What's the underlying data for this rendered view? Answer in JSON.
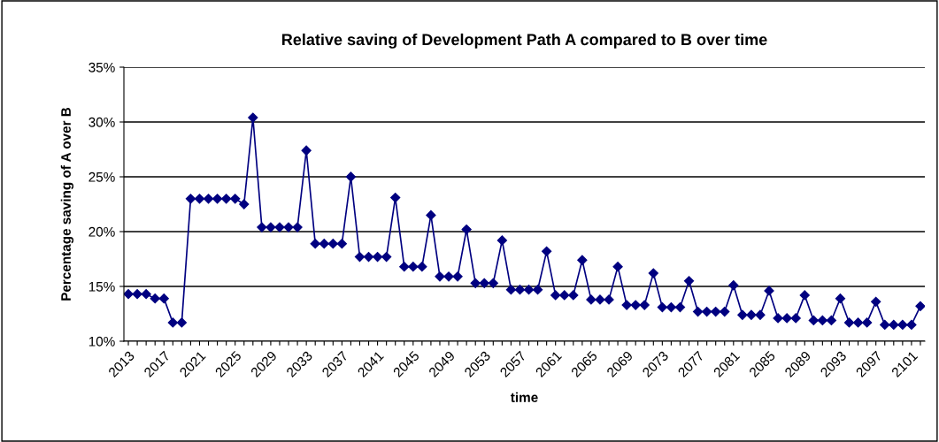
{
  "chart_data": {
    "type": "line",
    "title": "Relative saving of Development Path A compared to B over time",
    "xlabel": "time",
    "ylabel": "Percentage saving of A over B",
    "categories": [
      "2013",
      null,
      null,
      null,
      "2017",
      null,
      null,
      null,
      "2021",
      null,
      null,
      null,
      "2025",
      null,
      null,
      null,
      "2029",
      null,
      null,
      null,
      "2033",
      null,
      null,
      null,
      "2037",
      null,
      null,
      null,
      "2041",
      null,
      null,
      null,
      "2045",
      null,
      null,
      null,
      "2049",
      null,
      null,
      null,
      "2053",
      null,
      null,
      null,
      "2057",
      null,
      null,
      null,
      "2061",
      null,
      null,
      null,
      "2065",
      null,
      null,
      null,
      "2069",
      null,
      null,
      null,
      "2073",
      null,
      null,
      null,
      "2077",
      null,
      null,
      null,
      "2081",
      null,
      null,
      null,
      "2085",
      null,
      null,
      null,
      "2089",
      null,
      null,
      null,
      "2093",
      null,
      null,
      null,
      "2097",
      null,
      null,
      null,
      "2101",
      null
    ],
    "series": [
      {
        "color": "#000080",
        "values": [
          14.3,
          14.3,
          14.3,
          13.9,
          13.9,
          11.7,
          11.7,
          23.0,
          23.0,
          23.0,
          23.0,
          23.0,
          23.0,
          22.5,
          30.4,
          20.4,
          20.4,
          20.4,
          20.4,
          20.4,
          27.4,
          18.9,
          18.9,
          18.9,
          18.9,
          25.0,
          17.7,
          17.7,
          17.7,
          17.7,
          23.1,
          16.8,
          16.8,
          16.8,
          21.5,
          15.9,
          15.9,
          15.9,
          20.2,
          15.3,
          15.3,
          15.3,
          19.2,
          14.7,
          14.7,
          14.7,
          14.7,
          18.2,
          14.2,
          14.2,
          14.2,
          17.4,
          13.8,
          13.8,
          13.8,
          16.8,
          13.3,
          13.3,
          13.3,
          16.2,
          13.1,
          13.1,
          13.1,
          15.5,
          12.7,
          12.7,
          12.7,
          12.7,
          15.1,
          12.4,
          12.4,
          12.4,
          14.6,
          12.1,
          12.1,
          12.1,
          14.2,
          11.9,
          11.9,
          11.9,
          13.9,
          11.7,
          11.7,
          11.7,
          13.6,
          11.5,
          11.5,
          11.5,
          11.5,
          13.2
        ]
      }
    ],
    "ylim": [
      10,
      35
    ],
    "yticks": [
      {
        "value": 10,
        "label": "10%"
      },
      {
        "value": 15,
        "label": "15%"
      },
      {
        "value": 20,
        "label": "20%"
      },
      {
        "value": 25,
        "label": "25%"
      },
      {
        "value": 30,
        "label": "30%"
      },
      {
        "value": 35,
        "label": "35%"
      }
    ],
    "grid": "y",
    "marker": "diamond",
    "line_style": "solid",
    "legend": false
  }
}
